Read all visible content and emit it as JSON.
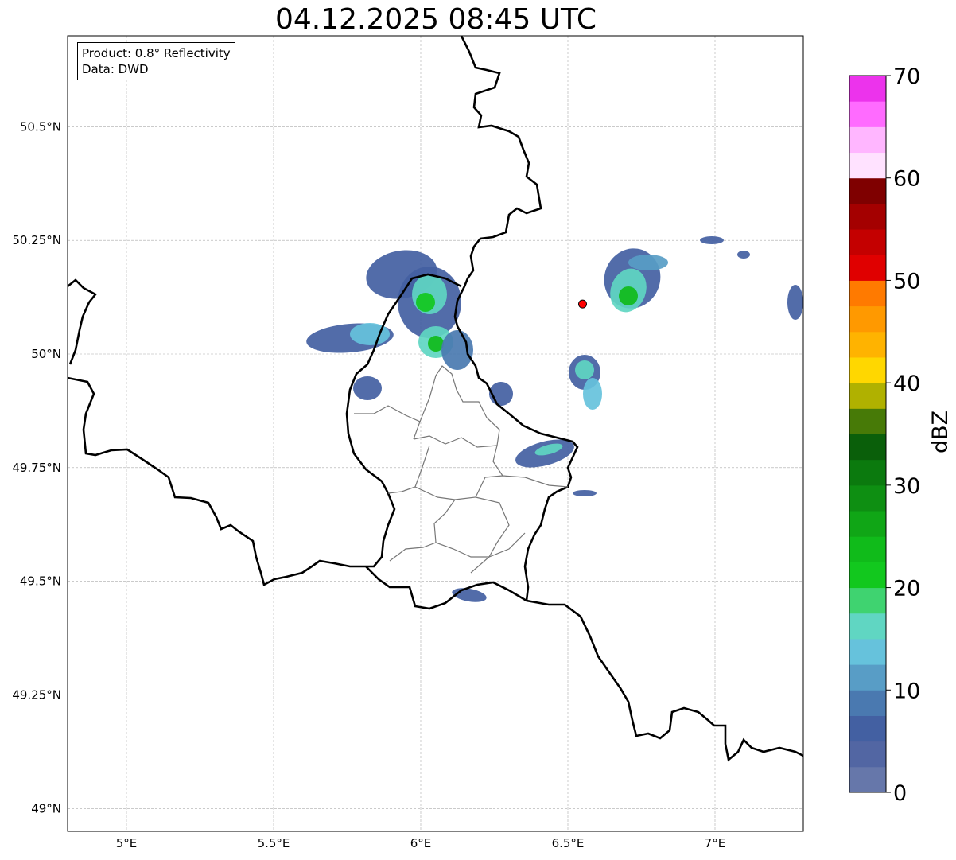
{
  "title": "04.12.2025 08:45 UTC",
  "info_box": {
    "product_line": "Product: 0.8° Reflectivity",
    "data_line": "Data: DWD"
  },
  "map": {
    "lon_range": [
      4.8,
      7.3
    ],
    "lat_range": [
      48.95,
      50.7
    ],
    "lon_ticks": [
      {
        "value": 5.0,
        "label": "5°E"
      },
      {
        "value": 5.5,
        "label": "5.5°E"
      },
      {
        "value": 6.0,
        "label": "6°E"
      },
      {
        "value": 6.5,
        "label": "6.5°E"
      },
      {
        "value": 7.0,
        "label": "7°E"
      }
    ],
    "lat_ticks": [
      {
        "value": 49.0,
        "label": "49°N"
      },
      {
        "value": 49.25,
        "label": "49.25°N"
      },
      {
        "value": 49.5,
        "label": "49.5°N"
      },
      {
        "value": 49.75,
        "label": "49.75°N"
      },
      {
        "value": 50.0,
        "label": "50°N"
      },
      {
        "value": 50.25,
        "label": "50.25°N"
      },
      {
        "value": 50.5,
        "label": "50.5°N"
      }
    ],
    "grid": true,
    "radar_site": {
      "lon": 6.55,
      "lat": 50.11,
      "color": "#ff0000"
    }
  },
  "colorbar": {
    "label": "dBZ",
    "min": 0,
    "max": 70,
    "step": 2.5,
    "ticks": [
      {
        "value": 0,
        "label": "0"
      },
      {
        "value": 10,
        "label": "10"
      },
      {
        "value": 20,
        "label": "20"
      },
      {
        "value": 30,
        "label": "30"
      },
      {
        "value": 40,
        "label": "40"
      },
      {
        "value": 50,
        "label": "50"
      },
      {
        "value": 60,
        "label": "60"
      },
      {
        "value": 70,
        "label": "70"
      }
    ],
    "colors": [
      "#6677aa",
      "#5266a3",
      "#4360a2",
      "#4a79b0",
      "#589dc6",
      "#66c2dc",
      "#60d6c2",
      "#3fd370",
      "#12c81e",
      "#10bb1a",
      "#10a616",
      "#0e8f12",
      "#0b7a0e",
      "#0a5f0a",
      "#477a07",
      "#b0b100",
      "#ffd700",
      "#ffb300",
      "#ff9900",
      "#ff7a00",
      "#e00000",
      "#c40000",
      "#a40000",
      "#7f0000",
      "#ffe2ff",
      "#ffb6ff",
      "#ff6bff",
      "#ec33ec"
    ]
  }
}
